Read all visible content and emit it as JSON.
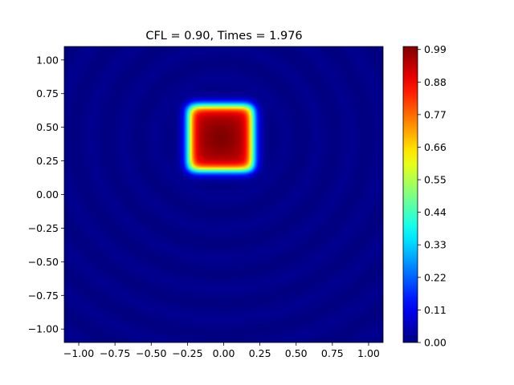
{
  "chart_data": {
    "type": "heatmap",
    "title": "CFL =  0.90, Times = 1.976",
    "xlabel": "",
    "ylabel": "",
    "xlim": [
      -1.1,
      1.1
    ],
    "ylim": [
      -1.1,
      1.1
    ],
    "xticks": [
      -1.0,
      -0.75,
      -0.5,
      -0.25,
      0.0,
      0.25,
      0.5,
      0.75,
      1.0
    ],
    "xtick_labels": [
      "−1.00",
      "−0.75",
      "−0.50",
      "−0.25",
      "0.00",
      "0.25",
      "0.50",
      "0.75",
      "1.00"
    ],
    "yticks": [
      -1.0,
      -0.75,
      -0.5,
      -0.25,
      0.0,
      0.25,
      0.5,
      0.75,
      1.0
    ],
    "ytick_labels": [
      "−1.00",
      "−0.75",
      "−0.50",
      "−0.25",
      "0.00",
      "0.25",
      "0.50",
      "0.75",
      "1.00"
    ],
    "colormap": "jet",
    "colorbar": {
      "range": [
        0.0,
        1.0
      ],
      "ticks": [
        0.0,
        0.11,
        0.22,
        0.33,
        0.44,
        0.55,
        0.66,
        0.77,
        0.88,
        0.99
      ],
      "tick_labels": [
        "0.00",
        "0.11",
        "0.22",
        "0.33",
        "0.44",
        "0.55",
        "0.66",
        "0.77",
        "0.88",
        "0.99"
      ]
    },
    "field": {
      "description_of_values": "square pulse of amplitude ~1 centered near x=0, y=0.42",
      "pulse_center": [
        -0.02,
        0.42
      ],
      "pulse_half_width_x": 0.22,
      "pulse_half_width_y": 0.24,
      "pulse_peak": 1.0,
      "background": 0.0,
      "ripple_amplitude": 0.015
    },
    "grid": false
  }
}
